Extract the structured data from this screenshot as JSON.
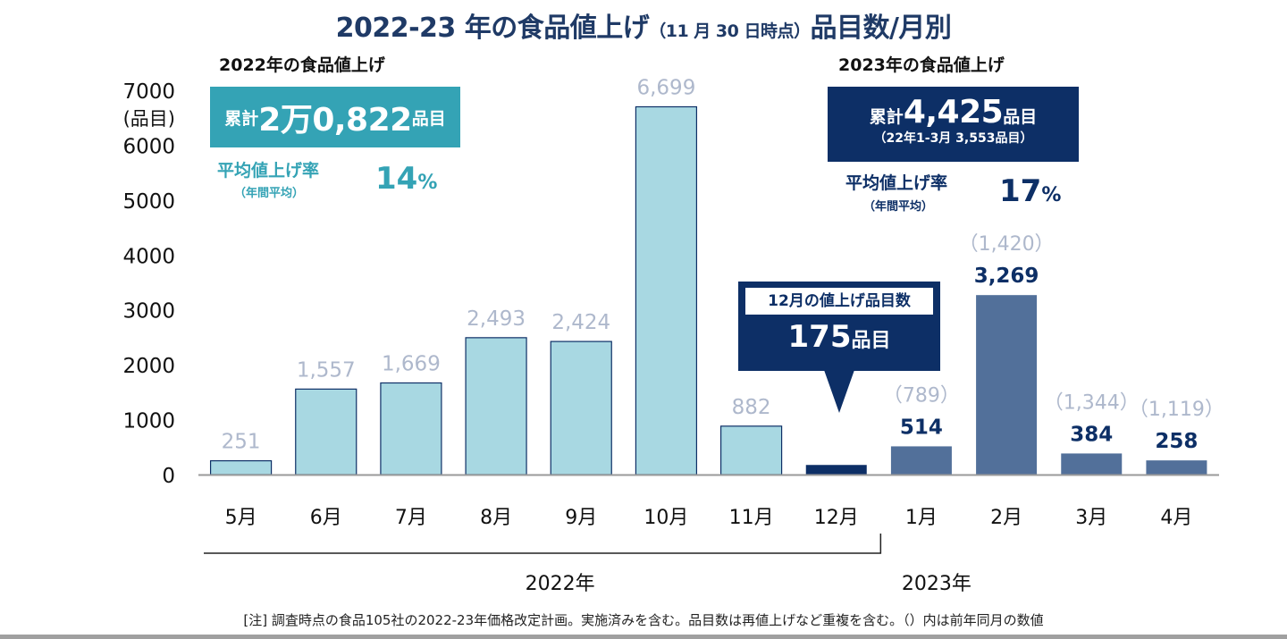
{
  "header": {
    "title_main": "2022-23 年の食品値上げ",
    "title_sub": "（11 月 30 日時点）",
    "title_end": "品目数/月別"
  },
  "summary_2022": {
    "section_title": "2022年の食品値上げ",
    "total_prefix": "累計",
    "total_value": "2万0,822",
    "total_unit": "品目",
    "rate_label": "平均値上げ率",
    "rate_sub": "（年間平均）",
    "rate_value": "14",
    "rate_unit": "%"
  },
  "summary_2023": {
    "section_title": "2023年の食品値上げ",
    "total_prefix": "累計",
    "total_value": "4,425",
    "total_unit": "品目",
    "comparison": "（22年1-3月 3,553品目）",
    "rate_label": "平均値上げ率",
    "rate_sub": "（年間平均）",
    "rate_value": "17",
    "rate_unit": "%"
  },
  "callout": {
    "header": "12月の値上げ品目数",
    "value": "175",
    "unit": "品目"
  },
  "note": "[注]  調査時点の食品105社の2022-23年価格改定計画。実施済みを含む。品目数は再値上げなど重複を含む。（）内は前年同月の数値",
  "colors": {
    "bar_2022": "#a8d8e2",
    "bar_2022_border": "#0d2f66",
    "bar_dec": "#0d2f66",
    "bar_2023": "#52709a",
    "label_2022": "#aeb8cc",
    "label_2023": "#0d2f66",
    "prev_year_label": "#aeb8cc",
    "accent_2022": "#34a3b5",
    "accent_2023": "#0d2f66",
    "title": "#1f3a66"
  },
  "chart_data": {
    "type": "bar",
    "title": "2022-23 年の食品値上げ（11 月 30 日時点）品目数/月別",
    "xlabel": "",
    "ylabel": "(品目)",
    "ylim": [
      0,
      7000
    ],
    "yticks": [
      0,
      1000,
      2000,
      3000,
      4000,
      5000,
      6000,
      7000
    ],
    "grid": false,
    "categories": [
      "5月",
      "6月",
      "7月",
      "8月",
      "9月",
      "10月",
      "11月",
      "12月",
      "1月",
      "2月",
      "3月",
      "4月"
    ],
    "values": [
      251,
      1557,
      1669,
      2493,
      2424,
      6699,
      882,
      175,
      514,
      3269,
      384,
      258
    ],
    "value_labels": [
      "251",
      "1,557",
      "1,669",
      "2,493",
      "2,424",
      "6,699",
      "882",
      "",
      "514",
      "3,269",
      "384",
      "258"
    ],
    "groups": [
      "2022",
      "2022",
      "2022",
      "2022",
      "2022",
      "2022",
      "2022",
      "2022-dec",
      "2023",
      "2023",
      "2023",
      "2023"
    ],
    "previous_year_labels": [
      "",
      "",
      "",
      "",
      "",
      "",
      "",
      "",
      "（789）",
      "（1,420）",
      "（1,344）",
      "（1,119）"
    ],
    "previous_year_values": [
      null,
      null,
      null,
      null,
      null,
      null,
      null,
      null,
      789,
      1420,
      1344,
      1119
    ],
    "year_groups": [
      {
        "label": "2022年",
        "from": "5月",
        "to": "12月"
      },
      {
        "label": "2023年",
        "from": "1月",
        "to": "4月"
      }
    ]
  }
}
